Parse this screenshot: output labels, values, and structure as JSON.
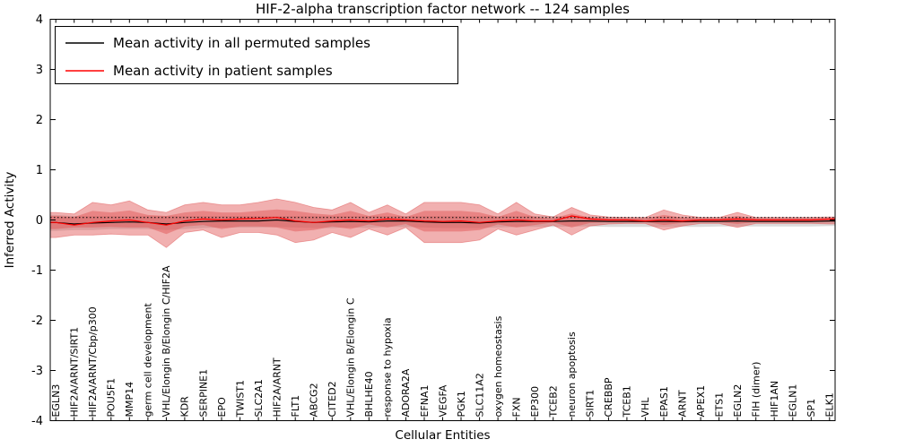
{
  "chart_data": {
    "type": "line",
    "title": "HIF-2-alpha transcription factor network -- 124 samples",
    "xlabel": "Cellular Entities",
    "ylabel": "Inferred Activity",
    "ylim": [
      -4,
      4
    ],
    "y_ticks": [
      4,
      3,
      2,
      1,
      0,
      -1,
      -2,
      -3,
      -4
    ],
    "grid": false,
    "legend_position": "upper left",
    "reference_line_y": 0.05,
    "categories": [
      "EGLN3",
      "HIF2A/ARNT/SIRT1",
      "HIF2A/ARNT/Cbp/p300",
      "POU5F1",
      "MMP14",
      "germ cell development",
      "VHL/Elongin B/Elongin C/HIF2A",
      "KDR",
      "SERPINE1",
      "EPO",
      "TWIST1",
      "SLC2A1",
      "HIF2A/ARNT",
      "FLT1",
      "ABCG2",
      "CITED2",
      "VHL/Elongin B/Elongin C",
      "BHLHE40",
      "response to hypoxia",
      "ADORA2A",
      "EFNA1",
      "VEGFA",
      "PGK1",
      "SLC11A2",
      "oxygen homeostasis",
      "FXN",
      "EP300",
      "TCEB2",
      "neuron apoptosis",
      "SIRT1",
      "CREBBP",
      "TCEB1",
      "VHL",
      "EPAS1",
      "ARNT",
      "APEX1",
      "ETS1",
      "EGLN2",
      "FIH (dimer)",
      "HIF1AN",
      "EGLN1",
      "SP1",
      "ELK1"
    ],
    "series": [
      {
        "name": "Mean activity in all permuted samples",
        "color": "#000000",
        "band_color": "#999999",
        "mean": [
          -0.05,
          -0.08,
          -0.06,
          -0.05,
          -0.04,
          -0.05,
          -0.08,
          -0.05,
          -0.03,
          -0.02,
          -0.02,
          -0.02,
          0.0,
          -0.03,
          -0.05,
          -0.04,
          -0.03,
          -0.04,
          -0.02,
          -0.02,
          -0.04,
          -0.05,
          -0.05,
          -0.06,
          -0.04,
          -0.03,
          -0.03,
          -0.03,
          -0.02,
          -0.02,
          -0.03,
          -0.03,
          -0.03,
          -0.03,
          -0.03,
          -0.03,
          -0.03,
          -0.02,
          -0.03,
          -0.03,
          -0.03,
          -0.03,
          -0.02
        ],
        "band_upper": [
          0.1,
          0.08,
          0.08,
          0.08,
          0.08,
          0.08,
          0.08,
          0.08,
          0.08,
          0.08,
          0.08,
          0.08,
          0.08,
          0.08,
          0.08,
          0.08,
          0.08,
          0.08,
          0.08,
          0.08,
          0.08,
          0.08,
          0.08,
          0.08,
          0.08,
          0.08,
          0.08,
          0.08,
          0.07,
          0.07,
          0.06,
          0.06,
          0.06,
          0.06,
          0.06,
          0.06,
          0.06,
          0.06,
          0.06,
          0.06,
          0.06,
          0.06,
          0.06
        ],
        "band_lower": [
          -0.22,
          -0.2,
          -0.2,
          -0.18,
          -0.18,
          -0.18,
          -0.2,
          -0.18,
          -0.16,
          -0.15,
          -0.15,
          -0.15,
          -0.14,
          -0.15,
          -0.16,
          -0.16,
          -0.15,
          -0.16,
          -0.14,
          -0.14,
          -0.15,
          -0.16,
          -0.16,
          -0.16,
          -0.15,
          -0.14,
          -0.14,
          -0.14,
          -0.13,
          -0.13,
          -0.14,
          -0.14,
          -0.14,
          -0.14,
          -0.14,
          -0.14,
          -0.13,
          -0.13,
          -0.13,
          -0.13,
          -0.13,
          -0.13,
          -0.12
        ]
      },
      {
        "name": "Mean activity in patient samples",
        "color": "#ff0000",
        "band_color": "#e05050",
        "mean": [
          -0.05,
          -0.1,
          -0.05,
          -0.02,
          0.0,
          -0.05,
          -0.1,
          -0.02,
          0.02,
          0.0,
          0.02,
          0.03,
          0.05,
          -0.02,
          -0.05,
          -0.02,
          0.0,
          -0.02,
          0.02,
          0.0,
          -0.02,
          -0.03,
          -0.02,
          -0.05,
          -0.02,
          0.0,
          -0.02,
          -0.02,
          0.08,
          0.02,
          0.0,
          0.0,
          -0.02,
          0.0,
          -0.02,
          0.0,
          0.0,
          0.02,
          0.0,
          0.0,
          0.0,
          0.0,
          0.02
        ],
        "band_upper": [
          0.15,
          0.12,
          0.35,
          0.3,
          0.38,
          0.2,
          0.15,
          0.3,
          0.35,
          0.3,
          0.3,
          0.35,
          0.42,
          0.35,
          0.25,
          0.2,
          0.35,
          0.15,
          0.3,
          0.12,
          0.35,
          0.35,
          0.35,
          0.3,
          0.12,
          0.35,
          0.12,
          0.06,
          0.25,
          0.1,
          0.06,
          0.05,
          0.05,
          0.2,
          0.1,
          0.05,
          0.05,
          0.15,
          0.05,
          0.05,
          0.05,
          0.05,
          0.06
        ],
        "band_lower": [
          -0.35,
          -0.3,
          -0.3,
          -0.28,
          -0.3,
          -0.3,
          -0.55,
          -0.25,
          -0.2,
          -0.35,
          -0.25,
          -0.25,
          -0.3,
          -0.45,
          -0.4,
          -0.25,
          -0.35,
          -0.18,
          -0.3,
          -0.15,
          -0.45,
          -0.45,
          -0.45,
          -0.4,
          -0.18,
          -0.3,
          -0.2,
          -0.1,
          -0.3,
          -0.12,
          -0.08,
          -0.07,
          -0.07,
          -0.2,
          -0.12,
          -0.07,
          -0.07,
          -0.15,
          -0.07,
          -0.07,
          -0.07,
          -0.07,
          -0.08
        ],
        "inner_band_upper": [
          0.08,
          0.06,
          0.18,
          0.15,
          0.19,
          0.1,
          0.08,
          0.15,
          0.18,
          0.15,
          0.15,
          0.18,
          0.21,
          0.18,
          0.13,
          0.1,
          0.18,
          0.08,
          0.15,
          0.06,
          0.18,
          0.18,
          0.18,
          0.15,
          0.06,
          0.18,
          0.06,
          0.03,
          0.13,
          0.05,
          0.03,
          0.03,
          0.03,
          0.1,
          0.05,
          0.03,
          0.03,
          0.08,
          0.03,
          0.03,
          0.03,
          0.03,
          0.03
        ],
        "inner_band_lower": [
          -0.18,
          -0.15,
          -0.15,
          -0.14,
          -0.15,
          -0.15,
          -0.28,
          -0.13,
          -0.1,
          -0.18,
          -0.13,
          -0.13,
          -0.15,
          -0.23,
          -0.2,
          -0.13,
          -0.18,
          -0.09,
          -0.15,
          -0.08,
          -0.23,
          -0.23,
          -0.23,
          -0.2,
          -0.09,
          -0.15,
          -0.1,
          -0.05,
          -0.15,
          -0.06,
          -0.04,
          -0.04,
          -0.04,
          -0.1,
          -0.06,
          -0.04,
          -0.04,
          -0.08,
          -0.04,
          -0.04,
          -0.04,
          -0.04,
          -0.04
        ]
      }
    ]
  }
}
